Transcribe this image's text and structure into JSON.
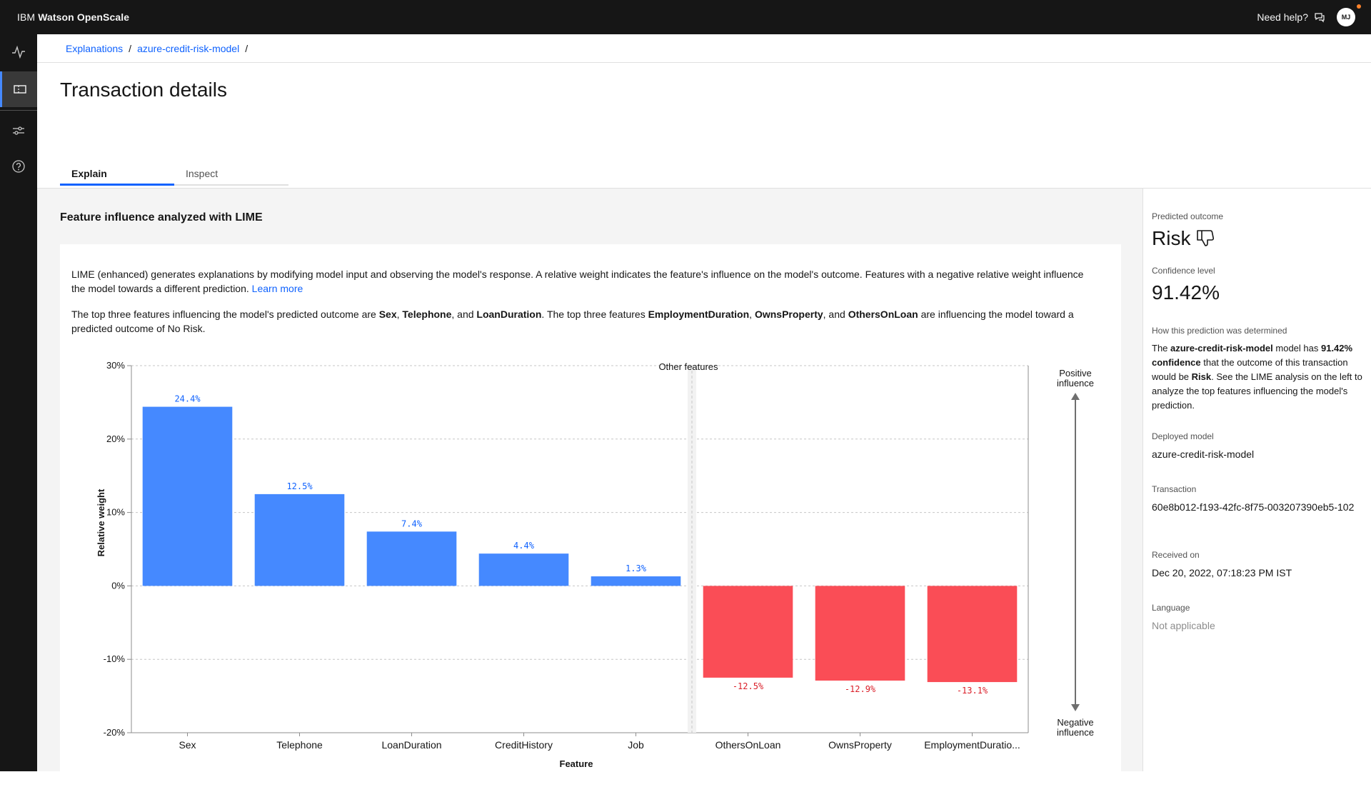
{
  "header": {
    "brand_prefix": "IBM",
    "brand_name": "Watson OpenScale",
    "help_label": "Need help?",
    "avatar_initials": "MJ"
  },
  "breadcrumb": {
    "items": [
      "Explanations",
      "azure-credit-risk-model"
    ],
    "separator": "/"
  },
  "page": {
    "title": "Transaction details"
  },
  "tabs": [
    {
      "label": "Explain",
      "active": true
    },
    {
      "label": "Inspect",
      "active": false
    }
  ],
  "explain": {
    "section_title": "Feature influence analyzed with LIME",
    "intro_text": "LIME (enhanced) generates explanations by modifying model input and observing the model's response. A relative weight indicates the feature's influence on the model's outcome. Features with a negative relative weight influence the model towards a different prediction.",
    "learn_more": "Learn more",
    "summary_1": "The top three features influencing the model's predicted outcome are ",
    "pos_1": "Sex",
    "sep_1": ", ",
    "pos_2": "Telephone",
    "sep_2": ", and ",
    "pos_3": "LoanDuration",
    "summary_2": ". The top three features ",
    "neg_1": "EmploymentDuration",
    "sep_3": ", ",
    "neg_2": "OwnsProperty",
    "sep_4": ", and ",
    "neg_3": "OthersOnLoan",
    "summary_3": " are influencing the model toward a predicted outcome of No Risk."
  },
  "chart_data": {
    "type": "bar",
    "categories": [
      "Sex",
      "Telephone",
      "LoanDuration",
      "CreditHistory",
      "Job",
      "OthersOnLoan",
      "OwnsProperty",
      "EmploymentDuratio..."
    ],
    "values": [
      24.4,
      12.5,
      7.4,
      4.4,
      1.3,
      -12.5,
      -12.9,
      -13.1
    ],
    "data_labels": [
      "24.4%",
      "12.5%",
      "7.4%",
      "4.4%",
      "1.3%",
      "-12.5%",
      "-12.9%",
      "-13.1%"
    ],
    "xlabel": "Feature",
    "ylabel": "Relative weight",
    "ylim": [
      -20,
      30
    ],
    "yticks": [
      30,
      20,
      10,
      0,
      -10,
      -20
    ],
    "ytick_labels": [
      "30%",
      "20%",
      "10%",
      "0%",
      "-10%",
      "-20%"
    ],
    "annotation": "Other features",
    "positive_label_1": "Positive",
    "positive_label_2": "influence",
    "negative_label_1": "Negative",
    "negative_label_2": "influence",
    "grid": true,
    "colors": {
      "positive": "#4589ff",
      "negative": "#fa4d56",
      "positive_label": "#0f62fe",
      "negative_label": "#da1e28"
    }
  },
  "side_panel": {
    "predicted_outcome_label": "Predicted outcome",
    "predicted_outcome": "Risk",
    "confidence_label": "Confidence level",
    "confidence": "91.42%",
    "how_label": "How this prediction was determined",
    "how_1": "The ",
    "how_model": "azure-credit-risk-model",
    "how_2": " model has ",
    "how_conf": "91.42% confidence",
    "how_3": " that the outcome of this transaction would be ",
    "how_outcome": "Risk",
    "how_4": ". See the LIME analysis on the left to analyze the top features influencing the model's prediction.",
    "deployed_label": "Deployed model",
    "deployed_model": "azure-credit-risk-model",
    "transaction_label": "Transaction",
    "transaction_id": "60e8b012-f193-42fc-8f75-003207390eb5-102",
    "received_label": "Received on",
    "received_on": "Dec 20, 2022, 07:18:23 PM IST",
    "language_label": "Language",
    "language": "Not applicable"
  },
  "icons": {
    "rail": [
      "activity-icon",
      "ticket-icon",
      "sliders-icon",
      "help-icon"
    ],
    "outcome": "thumbs-down-icon",
    "help": "chat-icon"
  }
}
